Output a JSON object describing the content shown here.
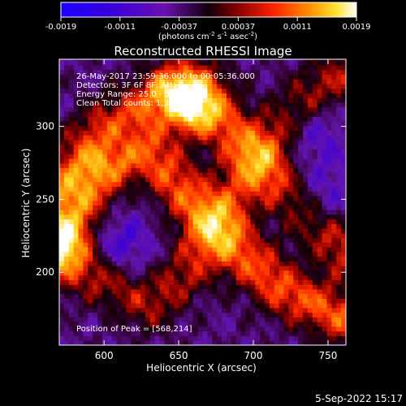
{
  "chart_data": {
    "type": "heatmap",
    "title": "Reconstructed RHESSI Image",
    "xlabel": "Heliocentric X (arcsec)",
    "ylabel": "Heliocentric Y (arcsec)",
    "xlim": [
      570,
      762
    ],
    "ylim": [
      150,
      346
    ],
    "x_ticks": [
      600,
      650,
      700,
      750
    ],
    "y_ticks": [
      200,
      250,
      300
    ],
    "colorbar": {
      "label_parts": {
        "base": "(photons cm",
        "e1": "-2",
        "mid1": " s",
        "e2": "-1",
        "mid2": " asec",
        "e3": "-2",
        "end": ")"
      },
      "range": [
        -0.0019,
        0.0019
      ],
      "tick_labels": [
        "-0.0019",
        "-0.0011",
        "-0.00037",
        "0.00037",
        "0.0011",
        "0.0019"
      ]
    },
    "info_lines": [
      "26-May-2017 23:59:36.000 to 00:05:36.000",
      "Detectors: 3F 6F 8F, Att: 0",
      "Energy Range: 25.0 - 50.0 keV",
      "Clean     Total counts: 1.32E+04"
    ],
    "peak_text": "Position of Peak = [568,214]",
    "structures": [
      {
        "kind": "ridge",
        "points": [
          [
            570,
            225
          ],
          [
            600,
            268
          ],
          [
            630,
            282
          ],
          [
            665,
            242
          ],
          [
            690,
            215
          ],
          [
            720,
            188
          ],
          [
            762,
            168
          ]
        ],
        "level": 0.0013
      },
      {
        "kind": "ridge",
        "points": [
          [
            570,
            262
          ],
          [
            600,
            300
          ],
          [
            640,
            322
          ],
          [
            680,
            302
          ],
          [
            710,
            270
          ],
          [
            740,
            236
          ],
          [
            762,
            215
          ]
        ],
        "level": 0.0011
      },
      {
        "kind": "ridge",
        "points": [
          [
            600,
            196
          ],
          [
            630,
            178
          ],
          [
            655,
            200
          ],
          [
            680,
            240
          ],
          [
            705,
            282
          ],
          [
            735,
            318
          ],
          [
            762,
            338
          ]
        ],
        "level": 0.0009
      },
      {
        "kind": "blob",
        "points": [
          [
            658,
            322
          ]
        ],
        "level": 0.0019
      },
      {
        "kind": "blob",
        "points": [
          [
            572,
            214
          ]
        ],
        "level": 0.0016
      },
      {
        "kind": "hole",
        "points": [
          [
            608,
            218
          ]
        ],
        "level": -0.0008
      },
      {
        "kind": "hole",
        "points": [
          [
            745,
            250
          ]
        ],
        "level": -0.0007
      },
      {
        "kind": "hole",
        "points": [
          [
            740,
            295
          ]
        ],
        "level": -0.0006
      }
    ]
  },
  "footer_date": "5-Sep-2022 15:17",
  "colors": {
    "background": "#000000",
    "text": "#ffffff"
  }
}
